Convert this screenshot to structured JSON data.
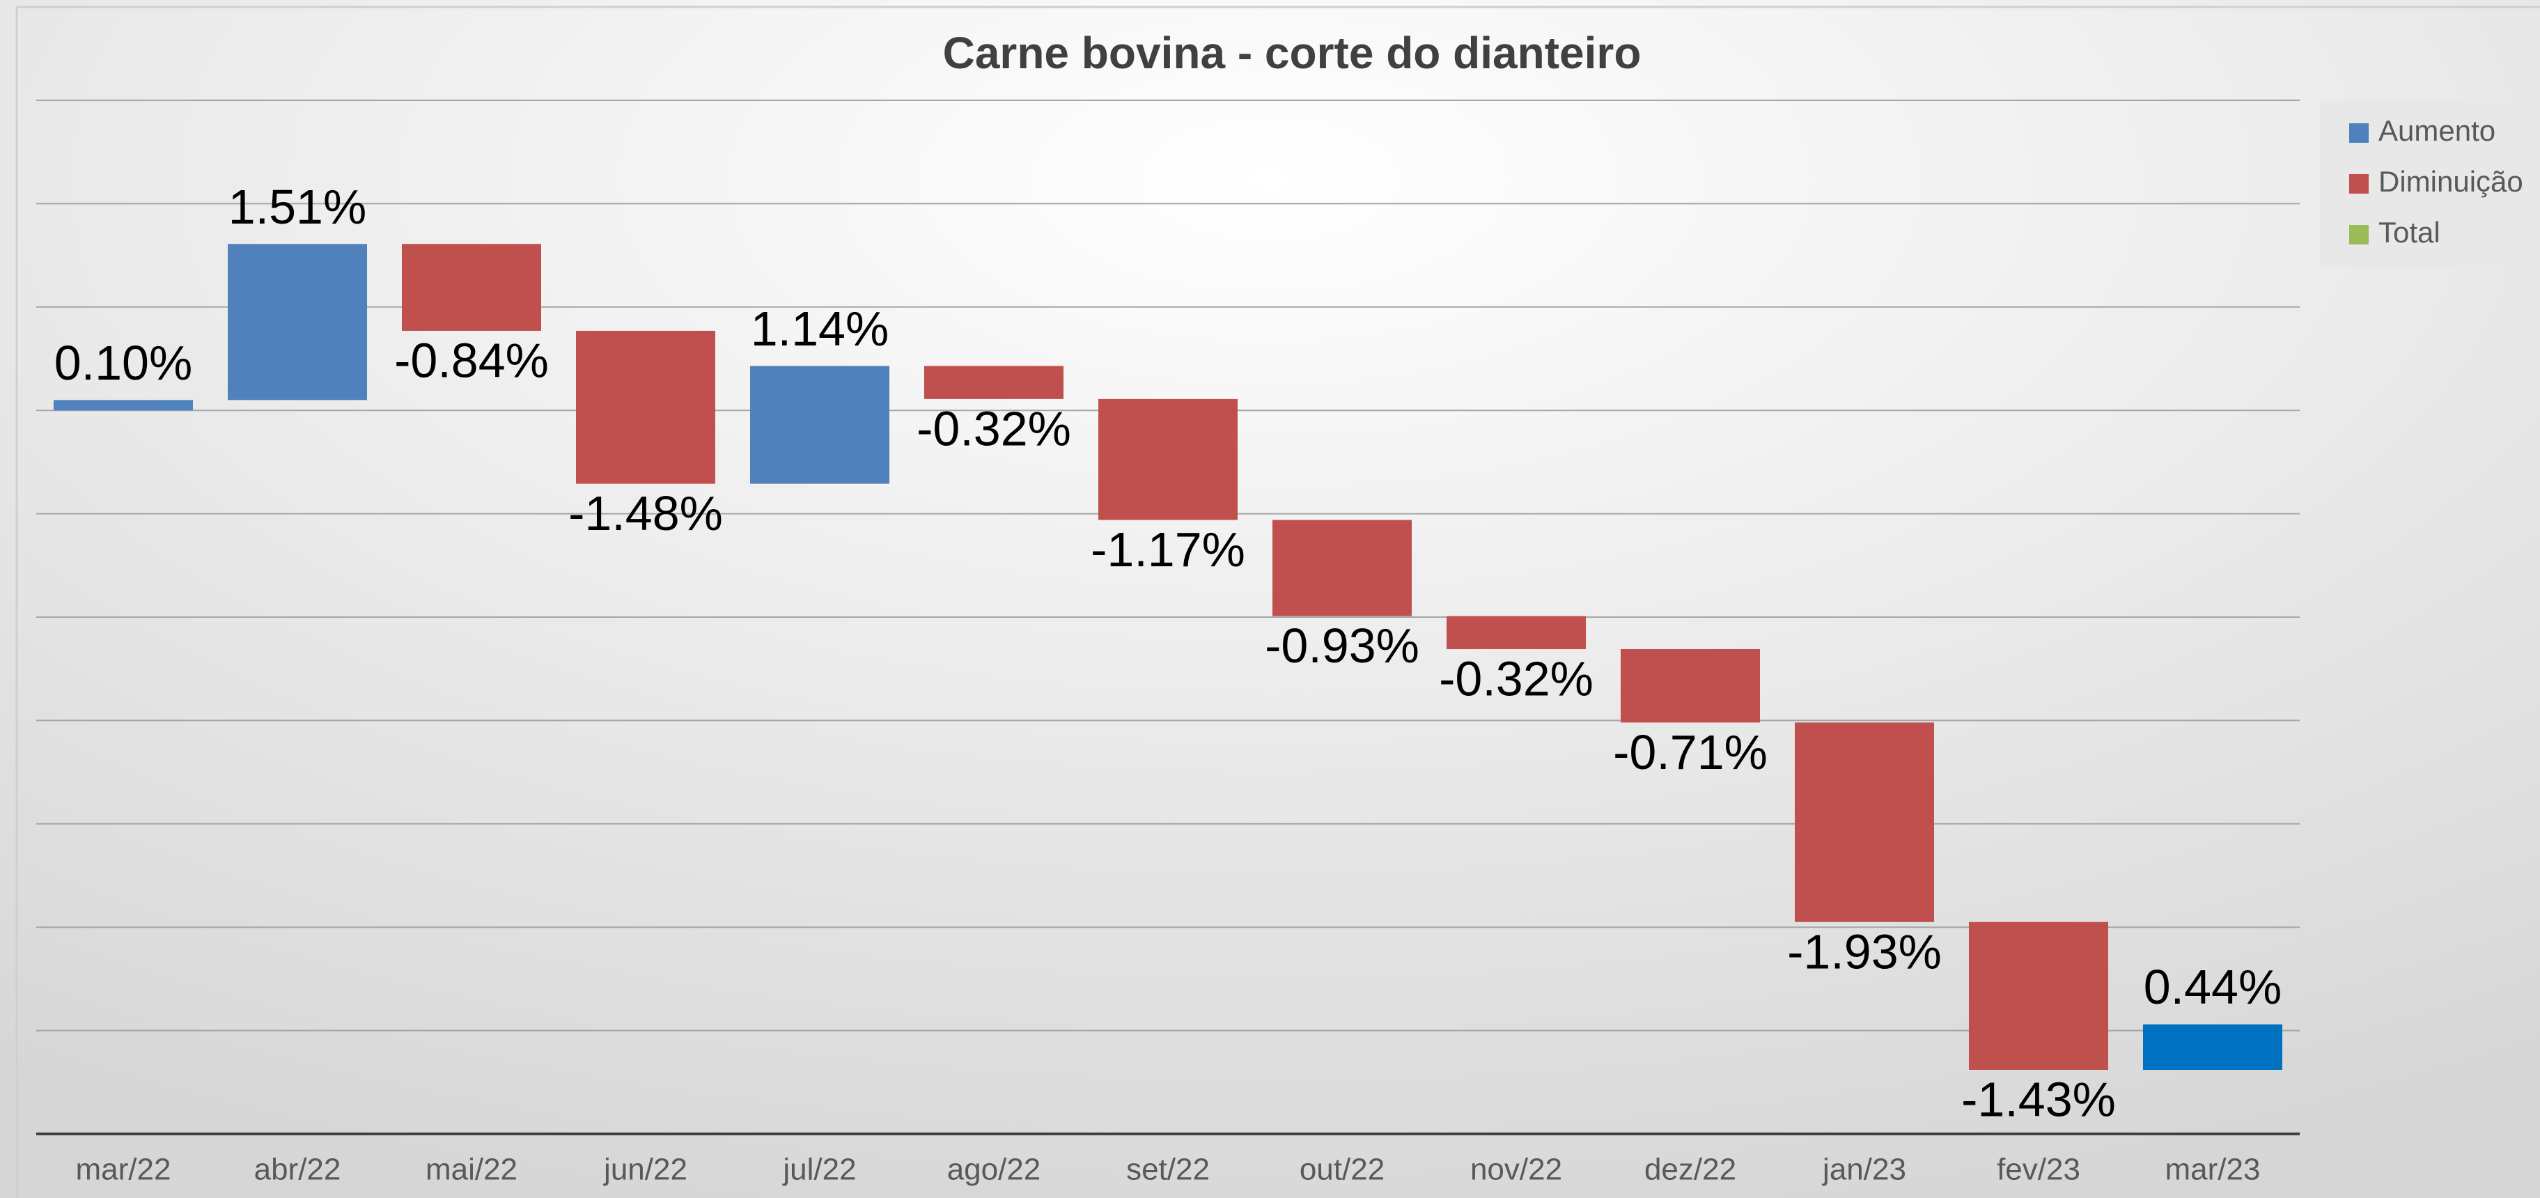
{
  "chart_data": {
    "type": "waterfall",
    "title": "Carne bovina - corte do dianteiro",
    "categories": [
      "mar/22",
      "abr/22",
      "mai/22",
      "jun/22",
      "jul/22",
      "ago/22",
      "set/22",
      "out/22",
      "nov/22",
      "dez/22",
      "jan/23",
      "fev/23",
      "mar/23"
    ],
    "values": [
      0.1,
      1.51,
      -0.84,
      -1.48,
      1.14,
      -0.32,
      -1.17,
      -0.93,
      -0.32,
      -0.71,
      -1.93,
      -1.43,
      0.44
    ],
    "value_labels": [
      "0.10%",
      "1.51%",
      "-0.84%",
      "-1.48%",
      "1.14%",
      "-0.32%",
      "-1.17%",
      "-0.93%",
      "-0.32%",
      "-0.71%",
      "-1.93%",
      "-1.43%",
      "0.44%"
    ],
    "colors": [
      "#4f81bd",
      "#4f81bd",
      "#c0504d",
      "#c0504d",
      "#4f81bd",
      "#c0504d",
      "#c0504d",
      "#c0504d",
      "#c0504d",
      "#c0504d",
      "#c0504d",
      "#c0504d",
      "#0070c0"
    ],
    "legend": [
      {
        "name": "Aumento",
        "color": "#4f81bd"
      },
      {
        "name": "Diminuição",
        "color": "#c0504d"
      },
      {
        "name": "Total",
        "color": "#9bbb59"
      }
    ],
    "ylim": [
      -7,
      3
    ],
    "yticks": [
      -7,
      -6,
      -5,
      -4,
      -3,
      -2,
      -1,
      0,
      1,
      2,
      3
    ],
    "grid": true
  }
}
